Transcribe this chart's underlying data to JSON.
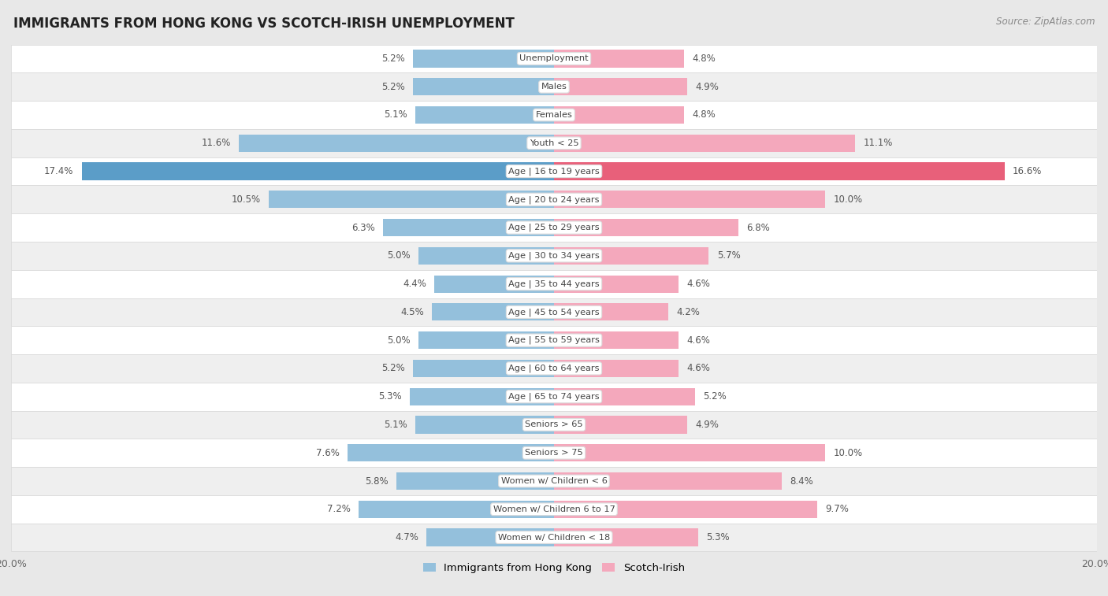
{
  "title": "IMMIGRANTS FROM HONG KONG VS SCOTCH-IRISH UNEMPLOYMENT",
  "source": "Source: ZipAtlas.com",
  "categories": [
    "Unemployment",
    "Males",
    "Females",
    "Youth < 25",
    "Age | 16 to 19 years",
    "Age | 20 to 24 years",
    "Age | 25 to 29 years",
    "Age | 30 to 34 years",
    "Age | 35 to 44 years",
    "Age | 45 to 54 years",
    "Age | 55 to 59 years",
    "Age | 60 to 64 years",
    "Age | 65 to 74 years",
    "Seniors > 65",
    "Seniors > 75",
    "Women w/ Children < 6",
    "Women w/ Children 6 to 17",
    "Women w/ Children < 18"
  ],
  "hong_kong": [
    5.2,
    5.2,
    5.1,
    11.6,
    17.4,
    10.5,
    6.3,
    5.0,
    4.4,
    4.5,
    5.0,
    5.2,
    5.3,
    5.1,
    7.6,
    5.8,
    7.2,
    4.7
  ],
  "scotch_irish": [
    4.8,
    4.9,
    4.8,
    11.1,
    16.6,
    10.0,
    6.8,
    5.7,
    4.6,
    4.2,
    4.6,
    4.6,
    5.2,
    4.9,
    10.0,
    8.4,
    9.7,
    5.3
  ],
  "hk_color": "#94c0dc",
  "si_color": "#f4a8bc",
  "hk_highlight_color": "#5b9dc8",
  "si_highlight_color": "#e8607a",
  "bg_color": "#e8e8e8",
  "row_bg_white": "#ffffff",
  "row_bg_gray": "#efefef",
  "row_border": "#d8d8d8",
  "label_color": "#666666",
  "value_color": "#555555",
  "title_color": "#222222",
  "xlim": 20.0,
  "legend_hk": "Immigrants from Hong Kong",
  "legend_si": "Scotch-Irish",
  "bar_height": 0.62
}
